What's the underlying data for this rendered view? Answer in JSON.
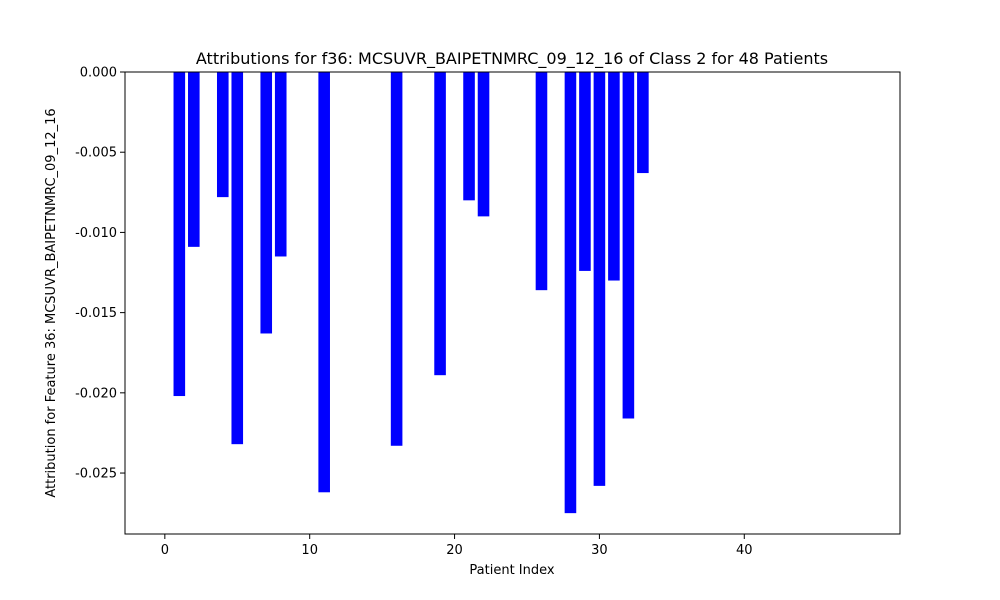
{
  "chart_data": {
    "type": "bar",
    "title": "Attributions for f36: MCSUVR_BAIPETNMRC_09_12_16 of Class 2 for 48 Patients",
    "xlabel": "Patient Index",
    "ylabel": "Attribution for Feature 36: MCSUVR_BAIPETNMRC_09_12_16",
    "xlim": [
      -2.75,
      50.75
    ],
    "ylim": [
      -0.0288,
      0.0
    ],
    "xticks": [
      0,
      10,
      20,
      30,
      40
    ],
    "yticks": [
      0.0,
      -0.005,
      -0.01,
      -0.015,
      -0.02,
      -0.025
    ],
    "ytick_labels": [
      "0.000",
      "-0.005",
      "-0.010",
      "-0.015",
      "-0.020",
      "-0.025"
    ],
    "grid": false,
    "bar_color": "#0000ff",
    "x": [
      0,
      1,
      2,
      3,
      4,
      5,
      6,
      7,
      8,
      9,
      10,
      11,
      12,
      13,
      14,
      15,
      16,
      17,
      18,
      19,
      20,
      21,
      22,
      23,
      24,
      25,
      26,
      27,
      28,
      29,
      30,
      31,
      32,
      33,
      34,
      35,
      36,
      37,
      38,
      39,
      40,
      41,
      42,
      43,
      44,
      45,
      46,
      47
    ],
    "values": [
      0,
      -0.0202,
      -0.0109,
      0,
      -0.0078,
      -0.0232,
      0,
      -0.0163,
      -0.0115,
      0,
      0,
      -0.0262,
      0,
      0,
      0,
      0,
      -0.0233,
      0,
      0,
      -0.0189,
      0,
      -0.008,
      -0.009,
      0,
      0,
      0,
      -0.0136,
      0,
      -0.0275,
      -0.0124,
      -0.0258,
      -0.013,
      -0.0216,
      -0.0063,
      0,
      0,
      0,
      0,
      0,
      0,
      0,
      0,
      0,
      0,
      0,
      0,
      0,
      0
    ]
  }
}
